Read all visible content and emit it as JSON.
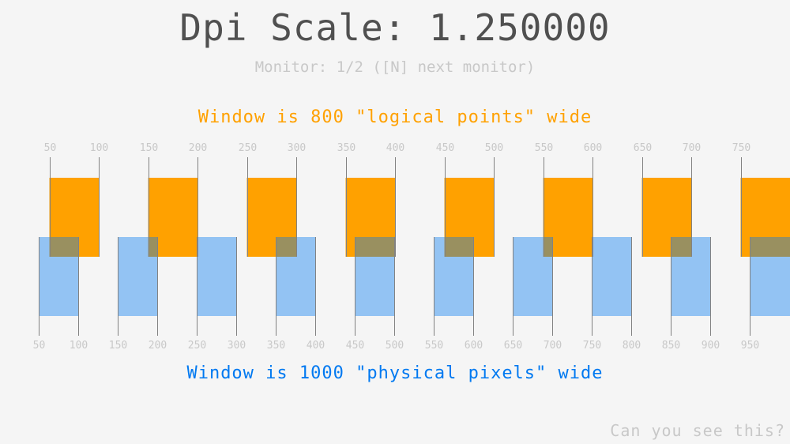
{
  "title": "Dpi Scale: 1.250000",
  "monitor_text": "Monitor: 1/2 ([N] next monitor)",
  "logical_text": "Window is 800 \"logical points\" wide",
  "physical_text": "Window is 1000 \"physical pixels\" wide",
  "footer_text": "Can you see this?",
  "dpi_scale": 1.25,
  "logical_width": 800,
  "physical_width": 1000,
  "logical_ticks": [
    50,
    100,
    150,
    200,
    250,
    300,
    350,
    400,
    450,
    500,
    550,
    600,
    650,
    700,
    750
  ],
  "physical_ticks": [
    50,
    100,
    150,
    200,
    250,
    300,
    350,
    400,
    450,
    500,
    550,
    600,
    650,
    700,
    750,
    800,
    850,
    900,
    950
  ],
  "colors": {
    "logical": "#ffa100",
    "physical": "#0079f1",
    "title": "#505050",
    "muted": "#c8c8c8",
    "line": "#828282",
    "background": "#f5f5f5"
  }
}
